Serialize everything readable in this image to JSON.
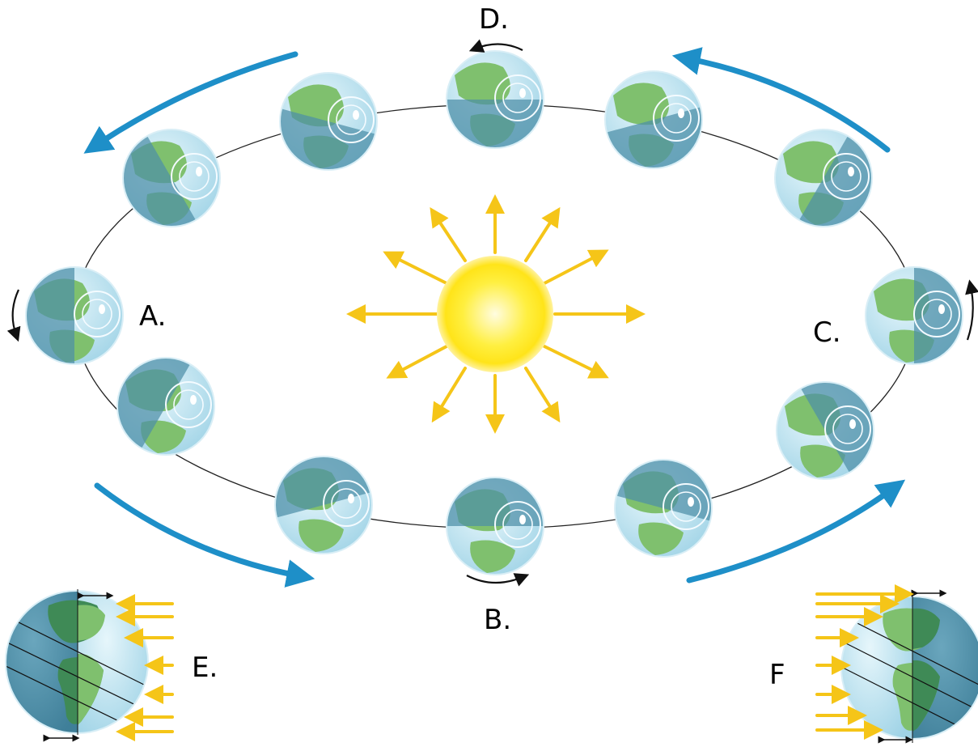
{
  "labels": {
    "a": "A.",
    "b": "B.",
    "c": "C.",
    "d": "D.",
    "e": "E.",
    "f": "F"
  },
  "colors": {
    "orbit_arrow": "#1e8fc8",
    "sun_core": "#ffe419",
    "sun_glow": "#fff7b0",
    "ray": "#f5c518",
    "land_day": "#7fc06e",
    "land_night": "#3f8a56",
    "ocean_day": "#bfe4f2",
    "ocean_night": "#4e8fa8",
    "orbit_line": "#222222"
  },
  "icons": {
    "sun": "sun-icon",
    "earth": "earth-globe-icon",
    "rotation": "rotation-arrow-icon",
    "orbit_direction": "curved-arrow-icon",
    "sunlight": "sunlight-arrow-icon"
  }
}
